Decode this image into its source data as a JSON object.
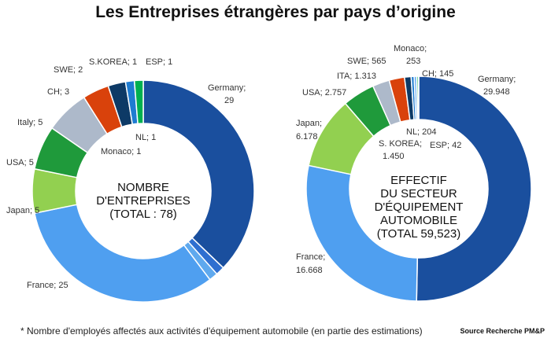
{
  "title": "Les Entreprises étrangères par pays d’origine",
  "footnote": "* Nombre d'employés affectés aux activités d'équipement automobile (en partie des estimations)",
  "source": "Source Recherche PM&P",
  "chart_data": [
    {
      "type": "pie",
      "center_text": [
        "NOMBRE",
        "D'ENTREPRISES",
        "(TOTAL : 78)"
      ],
      "slices": [
        {
          "label": "Germany",
          "value": 29,
          "value_text": "29",
          "color": "#1a4f9e"
        },
        {
          "label": "NL",
          "value": 1,
          "value_text": "1",
          "color": "#2f6fd0"
        },
        {
          "label": "Monaco",
          "value": 1,
          "value_text": "1",
          "color": "#5fa9ee"
        },
        {
          "label": "France",
          "value": 25,
          "value_text": "25",
          "color": "#4f9ff0"
        },
        {
          "label": "Japan",
          "value": 5,
          "value_text": "5",
          "color": "#92d050"
        },
        {
          "label": "USA",
          "value": 5,
          "value_text": "5",
          "color": "#1f9a3b"
        },
        {
          "label": "Italy",
          "value": 5,
          "value_text": "5",
          "color": "#adb9ca"
        },
        {
          "label": "CH",
          "value": 3,
          "value_text": "3",
          "color": "#d9420b"
        },
        {
          "label": "SWE",
          "value": 2,
          "value_text": "2",
          "color": "#0d3a66"
        },
        {
          "label": "S.KOREA",
          "value": 1,
          "value_text": "1",
          "color": "#1e7cd1"
        },
        {
          "label": "ESP",
          "value": 1,
          "value_text": "1",
          "color": "#00b050"
        }
      ],
      "label_texts": [
        "Germany;",
        "29",
        "NL; 1",
        "Monaco; 1",
        "France; 25",
        "Japan; 5",
        "USA; 5",
        "Italy; 5",
        "CH; 3",
        "SWE; 2",
        "S.KOREA; 1",
        "ESP; 1"
      ]
    },
    {
      "type": "pie",
      "center_text": [
        "EFFECTIF",
        "DU SECTEUR",
        "D'ÉQUIPEMENT",
        "AUTOMOBILE",
        "(TOTAL 59,523)"
      ],
      "slices": [
        {
          "label": "Germany",
          "value": 29948,
          "value_text": "29.948",
          "color": "#1a4f9e"
        },
        {
          "label": "France",
          "value": 16668,
          "value_text": "16.668",
          "color": "#4f9ff0"
        },
        {
          "label": "Japan",
          "value": 6178,
          "value_text": "6.178",
          "color": "#92d050"
        },
        {
          "label": "USA",
          "value": 2757,
          "value_text": "2.757",
          "color": "#1f9a3b"
        },
        {
          "label": "S. KOREA",
          "value": 1450,
          "value_text": "1.450",
          "color": "#adb9ca"
        },
        {
          "label": "ITA",
          "value": 1313,
          "value_text": "1.313",
          "color": "#d9420b"
        },
        {
          "label": "SWE",
          "value": 565,
          "value_text": "565",
          "color": "#0d3a66"
        },
        {
          "label": "Monaco",
          "value": 253,
          "value_text": "253",
          "color": "#1e7cd1"
        },
        {
          "label": "NL",
          "value": 204,
          "value_text": "204",
          "color": "#5fa9ee"
        },
        {
          "label": "CH",
          "value": 145,
          "value_text": "145",
          "color": "#00b050"
        },
        {
          "label": "ESP",
          "value": 42,
          "value_text": "42",
          "color": "#12355f"
        }
      ],
      "label_texts": [
        "Monaco;",
        "253",
        "SWE; 565",
        "ITA; 1.313",
        "CH; 145",
        "Germany;",
        "29.948",
        "USA; 2.757",
        "Japan;",
        "6.178",
        "NL; 204",
        "S. KOREA;",
        "1.450",
        "ESP; 42",
        "France;",
        "16.668"
      ]
    }
  ]
}
